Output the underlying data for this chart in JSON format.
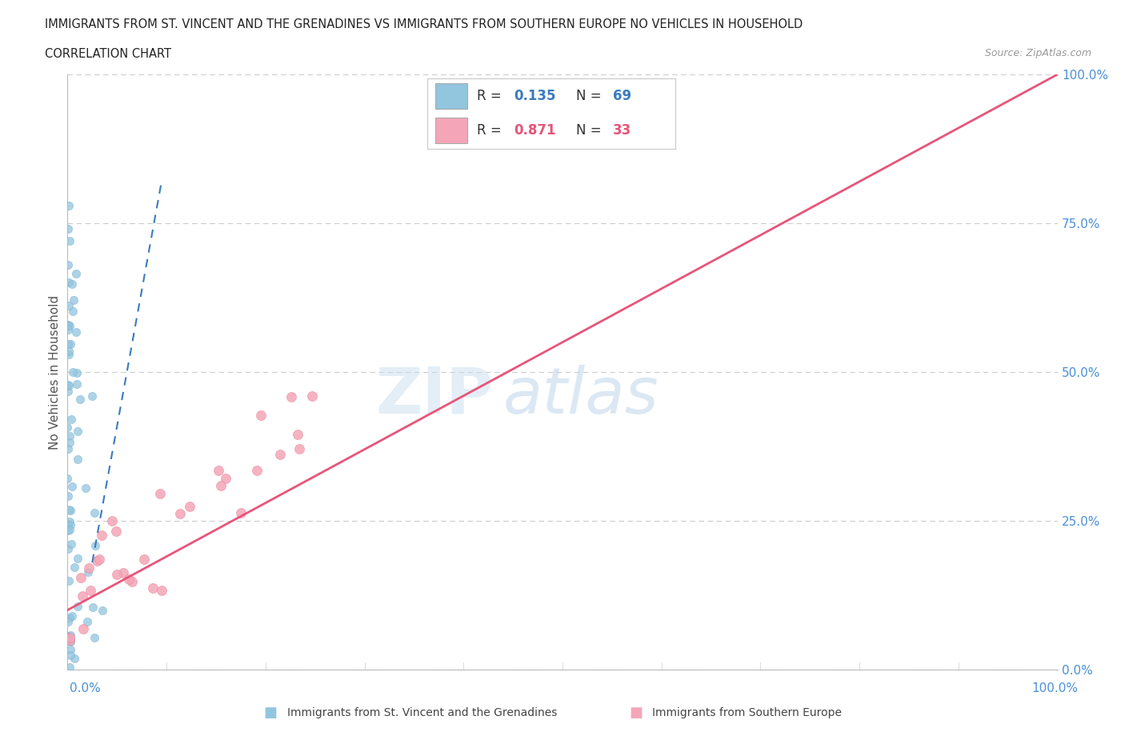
{
  "title_line1": "IMMIGRANTS FROM ST. VINCENT AND THE GRENADINES VS IMMIGRANTS FROM SOUTHERN EUROPE NO VEHICLES IN HOUSEHOLD",
  "title_line2": "CORRELATION CHART",
  "source": "Source: ZipAtlas.com",
  "ylabel": "No Vehicles in Household",
  "ytick_labels": [
    "0.0%",
    "25.0%",
    "50.0%",
    "75.0%",
    "100.0%"
  ],
  "ytick_vals": [
    0,
    25,
    50,
    75,
    100
  ],
  "legend_blue_r": "0.135",
  "legend_blue_n": "69",
  "legend_pink_r": "0.871",
  "legend_pink_n": "33",
  "blue_color": "#92c5de",
  "pink_color": "#f4a6b8",
  "blue_line_color": "#3a7abf",
  "pink_line_color": "#e8547a",
  "xmin": 0,
  "xmax": 100,
  "ymin": 0,
  "ymax": 100,
  "blue_seed": 42,
  "pink_seed": 7,
  "bottom_label_blue": "Immigrants from St. Vincent and the Grenadines",
  "bottom_label_pink": "Immigrants from Southern Europe"
}
